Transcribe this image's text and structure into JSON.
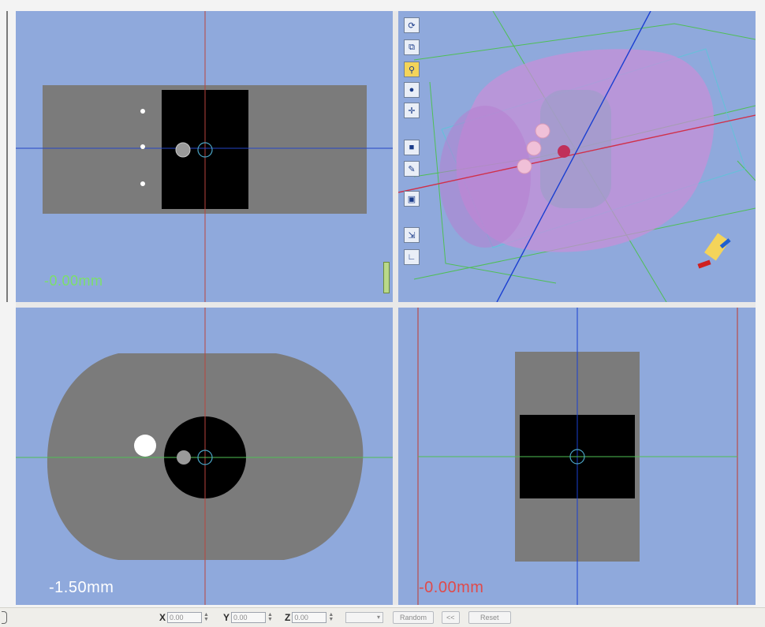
{
  "views": {
    "top_left": {
      "label": "-0.00mm"
    },
    "bottom_left": {
      "label": "-1.50mm"
    },
    "bottom_right": {
      "label": "-0.00mm"
    }
  },
  "toolbar3d": {
    "buttons": [
      {
        "name": "rotate-view-button",
        "glyph": "⟳",
        "active": false
      },
      {
        "name": "pan-view-button",
        "glyph": "⧉",
        "active": false
      },
      {
        "name": "axes-button",
        "glyph": "⚲",
        "active": true
      },
      {
        "name": "sphere-button",
        "glyph": "●",
        "active": false
      },
      {
        "name": "crosshair-button",
        "glyph": "✛",
        "active": false
      },
      {
        "name": "solid-button",
        "glyph": "■",
        "active": false
      },
      {
        "name": "tool-button",
        "glyph": "✎",
        "active": false
      },
      {
        "name": "frame-button",
        "glyph": "▣",
        "active": false
      },
      {
        "name": "camera-button",
        "glyph": "⇲",
        "active": false
      },
      {
        "name": "axis-lines-button",
        "glyph": "∟",
        "active": false
      }
    ]
  },
  "statusbar": {
    "x_label": "X",
    "x_value": "0.00",
    "y_label": "Y",
    "y_value": "0.00",
    "z_label": "Z",
    "z_value": "0.00",
    "random_label": "Random",
    "small_button_label": "<<",
    "reset_label": "Reset"
  },
  "colors": {
    "viewport_bg": "#8fa9dc",
    "phantom_gray": "#7b7b7b",
    "insert_black": "#000000",
    "crosshair_red": "#c0392b",
    "crosshair_blue": "#1a3fd1",
    "crosshair_green": "#4fbf55"
  }
}
